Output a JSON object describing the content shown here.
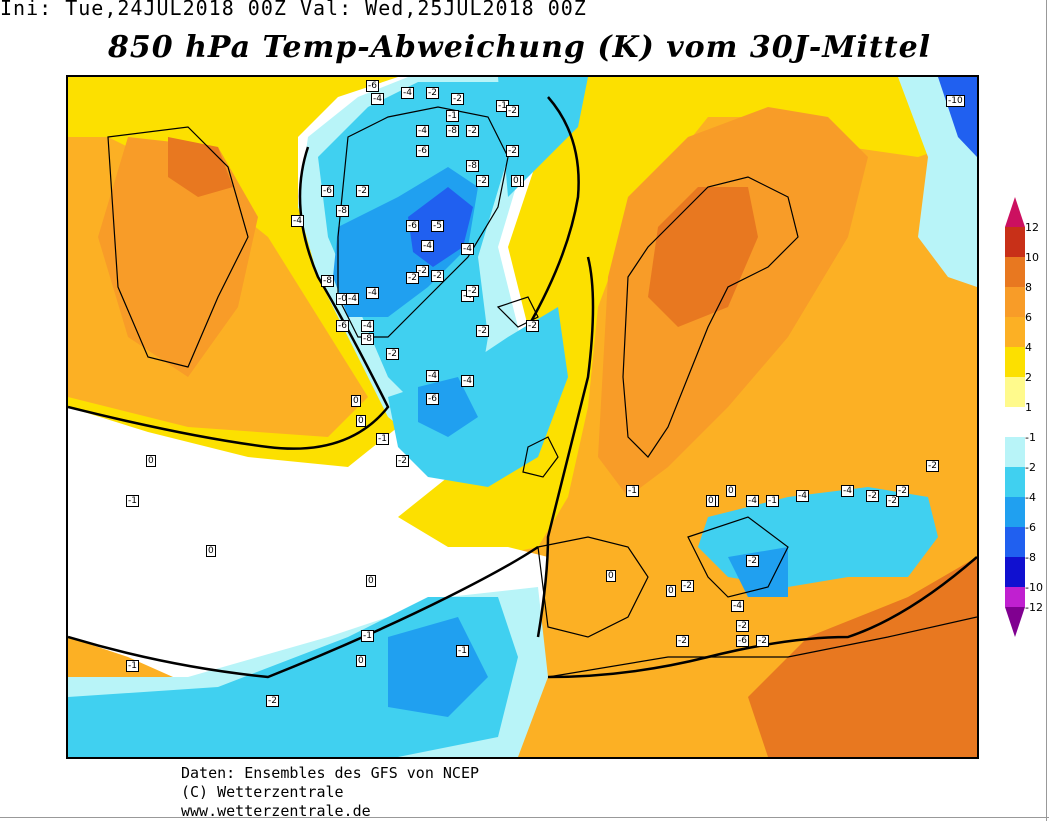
{
  "header": {
    "init_text": "Ini: Tue,24JUL2018 00Z  Val: Wed,25JUL2018 00Z",
    "title": "850 hPa Temp-Abweichung (K) vom 30J-Mittel"
  },
  "credits": {
    "line1": "Daten: Ensembles des GFS von NCEP",
    "line2": "(C) Wetterzentrale",
    "line3": "www.wetterzentrale.de"
  },
  "colors": {
    "ocean_default": "#fcb024",
    "anomaly_plus12": "#cc1060",
    "anomaly_plus10": "#c83018",
    "anomaly_plus8": "#e87820",
    "anomaly_plus6": "#f89c28",
    "anomaly_plus4": "#fcb024",
    "anomaly_plus2": "#fce000",
    "anomaly_plus1": "#fffa8c",
    "anomaly_zero": "#ffffff",
    "anomaly_minus1": "#b8f4f8",
    "anomaly_minus2": "#40d0f0",
    "anomaly_minus4": "#20a0f0",
    "anomaly_minus6": "#2060f0",
    "anomaly_minus8": "#1010d0",
    "anomaly_minus10": "#c020d0",
    "anomaly_minus12": "#800090"
  },
  "legend": {
    "labels": [
      "12",
      "10",
      "8",
      "6",
      "4",
      "2",
      "1",
      "-1",
      "-2",
      "-4",
      "-6",
      "-8",
      "-10",
      "-12"
    ]
  },
  "map_labels": [
    "-6",
    "-4",
    "-4",
    "-2",
    "-2",
    "-1",
    "-4",
    "-8",
    "-2",
    "-2",
    "-1",
    "-2",
    "-6",
    "-8",
    "-2",
    "-1",
    "-4",
    "-6",
    "-2",
    "-8",
    "-6",
    "-5",
    "-4",
    "-4",
    "-2",
    "-2",
    "-8",
    "-0",
    "-4",
    "-4",
    "-2",
    "-6",
    "-4",
    "-8",
    "-2",
    "-4",
    "-4",
    "-6",
    "-2",
    "-1",
    "0",
    "-2",
    "-2",
    "-4",
    "0",
    "-2",
    "-1",
    "-2",
    "-4",
    "-1",
    "-2",
    "-2",
    "-2",
    "-2",
    "-4",
    "-2",
    "-6",
    "-2",
    "-2",
    "-4",
    "-4",
    "-2",
    "-2",
    "-10",
    "-2",
    "-1",
    "-1",
    "-1",
    "-1",
    "0",
    "0",
    "0",
    "0",
    "0",
    "0",
    "0",
    "0",
    "0"
  ]
}
